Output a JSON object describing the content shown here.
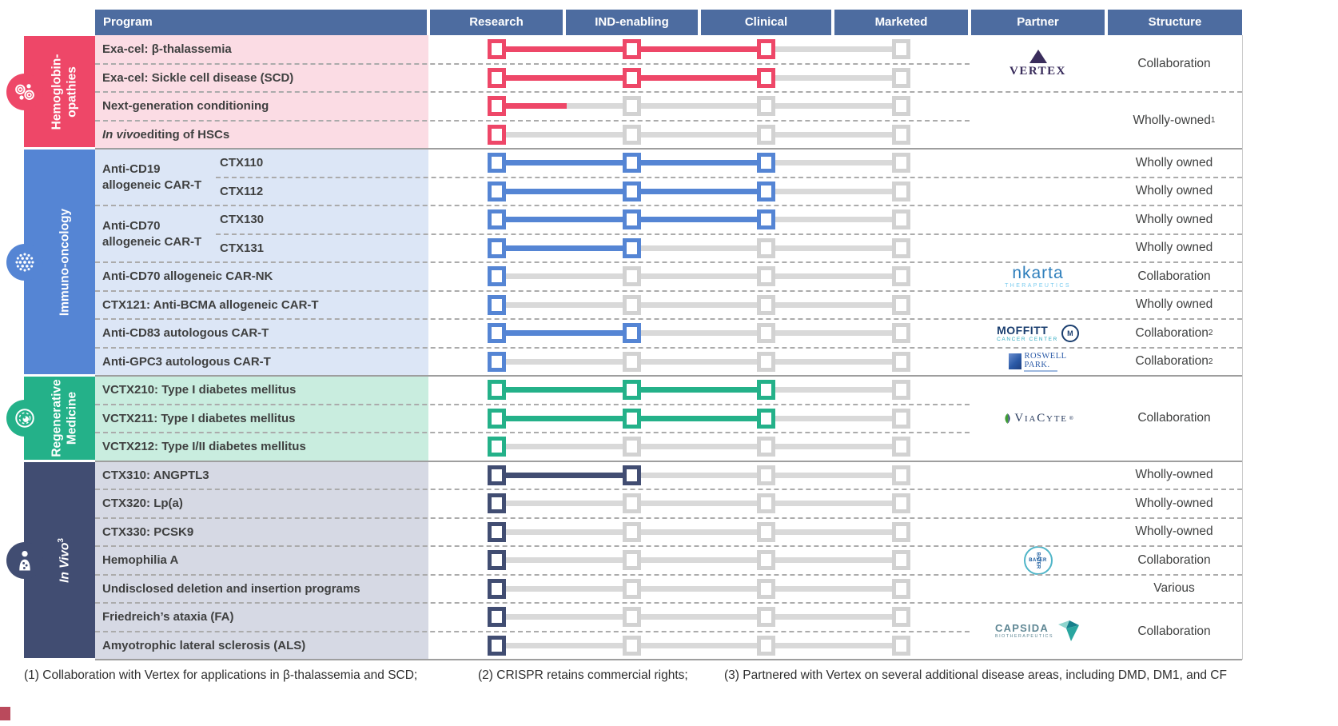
{
  "header": {
    "columns": [
      "Program",
      "Research",
      "IND-enabling",
      "Clinical",
      "Marketed",
      "Partner",
      "Structure"
    ]
  },
  "stages": [
    "Research",
    "IND-enabling",
    "Clinical",
    "Marketed"
  ],
  "colors": {
    "header_bg": "#4D6CA0",
    "pink": "#EE4768",
    "pink_row_bg": "#FBDCE4",
    "blue": "#5585D4",
    "blue_row_bg": "#DCE6F6",
    "green": "#24B189",
    "green_row_bg": "#C9EDDF",
    "navy": "#414D72",
    "navy_row_bg": "#D6D9E4",
    "inactive_track": "#D9D9D9",
    "inactive_square": "#D2D2D2",
    "dashed_line": "#ABABAB",
    "section_divider": "#9E9E9E",
    "body_text": "#3F4040"
  },
  "sections": [
    {
      "id": "hemoglobinopathies",
      "label_lines": "Hemoglobin-\nopathies",
      "label_italic": false,
      "label_sup": "",
      "icon": "blood-cells-icon",
      "accent": "pink",
      "rows": [
        {
          "label": "Exa-cel: β-thalassemia",
          "squares": [
            1,
            1,
            1,
            0
          ],
          "segments": [
            1,
            1,
            0
          ]
        },
        {
          "label": "Exa-cel: Sickle cell disease (SCD)",
          "squares": [
            1,
            1,
            1,
            0
          ],
          "segments": [
            1,
            1,
            0
          ]
        },
        {
          "label": "Next-generation conditioning",
          "squares": [
            1,
            0,
            0,
            0
          ],
          "segments": [
            0.52,
            0,
            0
          ]
        },
        {
          "italic_lead": "In vivo",
          "label": " editing of HSCs",
          "squares": [
            1,
            0,
            0,
            0
          ],
          "segments": [
            0,
            0,
            0
          ]
        }
      ],
      "groups": [],
      "separators": [
        {
          "after": 0,
          "extent": "toPartner"
        },
        {
          "after": 1,
          "extent": "full"
        },
        {
          "after": 2,
          "extent": "toPartner"
        }
      ],
      "partners": [
        {
          "start": 0,
          "span": 2,
          "logo": "vertex"
        }
      ],
      "structures": [
        {
          "start": 0,
          "span": 2,
          "text": "Collaboration",
          "sup": ""
        },
        {
          "start": 2,
          "span": 2,
          "text": "Wholly-owned",
          "sup": "1"
        }
      ]
    },
    {
      "id": "immuno-oncology",
      "label_lines": "Immuno-oncology",
      "label_italic": false,
      "label_sup": "",
      "icon": "cell-cluster-icon",
      "accent": "blue",
      "rows": [
        {
          "label": "CTX110",
          "sub": true,
          "squares": [
            1,
            1,
            1,
            0
          ],
          "segments": [
            1,
            1,
            0
          ]
        },
        {
          "label": "CTX112",
          "sub": true,
          "squares": [
            1,
            1,
            1,
            0
          ],
          "segments": [
            1,
            1,
            0
          ]
        },
        {
          "label": "CTX130",
          "sub": true,
          "squares": [
            1,
            1,
            1,
            0
          ],
          "segments": [
            1,
            1,
            0
          ]
        },
        {
          "label": "CTX131",
          "sub": true,
          "squares": [
            1,
            1,
            0,
            0
          ],
          "segments": [
            1,
            0,
            0
          ]
        },
        {
          "label": "Anti-CD70 allogeneic CAR-NK",
          "squares": [
            1,
            0,
            0,
            0
          ],
          "segments": [
            0,
            0,
            0
          ]
        },
        {
          "label": "CTX121: Anti-BCMA allogeneic CAR-T",
          "squares": [
            1,
            0,
            0,
            0
          ],
          "segments": [
            0,
            0,
            0
          ]
        },
        {
          "label": "Anti-CD83 autologous CAR-T",
          "squares": [
            1,
            1,
            0,
            0
          ],
          "segments": [
            1,
            0,
            0
          ]
        },
        {
          "label": "Anti-GPC3 autologous CAR-T",
          "squares": [
            1,
            0,
            0,
            0
          ],
          "segments": [
            0,
            0,
            0
          ]
        }
      ],
      "groups": [
        {
          "start": 0,
          "span": 2,
          "label": "Anti-CD19\nallogeneic CAR-T"
        },
        {
          "start": 2,
          "span": 2,
          "label": "Anti-CD70\nallogeneic CAR-T"
        }
      ],
      "separators": [
        {
          "after": 0,
          "extent": "fromSub"
        },
        {
          "after": 1,
          "extent": "full"
        },
        {
          "after": 2,
          "extent": "fromSub"
        },
        {
          "after": 3,
          "extent": "full"
        },
        {
          "after": 4,
          "extent": "full"
        },
        {
          "after": 5,
          "extent": "full"
        },
        {
          "after": 6,
          "extent": "full"
        }
      ],
      "partners": [
        {
          "start": 4,
          "span": 1,
          "logo": "nkarta"
        },
        {
          "start": 6,
          "span": 1,
          "logo": "moffitt"
        },
        {
          "start": 7,
          "span": 1,
          "logo": "roswell"
        }
      ],
      "structures": [
        {
          "start": 0,
          "span": 1,
          "text": "Wholly owned",
          "sup": ""
        },
        {
          "start": 1,
          "span": 1,
          "text": "Wholly owned",
          "sup": ""
        },
        {
          "start": 2,
          "span": 1,
          "text": "Wholly owned",
          "sup": ""
        },
        {
          "start": 3,
          "span": 1,
          "text": "Wholly owned",
          "sup": ""
        },
        {
          "start": 4,
          "span": 1,
          "text": "Collaboration",
          "sup": ""
        },
        {
          "start": 5,
          "span": 1,
          "text": "Wholly owned",
          "sup": ""
        },
        {
          "start": 6,
          "span": 1,
          "text": "Collaboration",
          "sup": "2"
        },
        {
          "start": 7,
          "span": 1,
          "text": "Collaboration",
          "sup": "2"
        }
      ]
    },
    {
      "id": "regenerative-medicine",
      "label_lines": "Regenerative\nMedicine",
      "label_italic": false,
      "label_sup": "",
      "icon": "regenerating-cell-icon",
      "accent": "green",
      "rows": [
        {
          "label": "VCTX210: Type I diabetes mellitus",
          "squares": [
            1,
            1,
            1,
            0
          ],
          "segments": [
            1,
            1,
            0
          ]
        },
        {
          "label": "VCTX211: Type I diabetes mellitus",
          "squares": [
            1,
            1,
            1,
            0
          ],
          "segments": [
            1,
            1,
            0
          ]
        },
        {
          "label": "VCTX212: Type I/II diabetes mellitus",
          "squares": [
            1,
            0,
            0,
            0
          ],
          "segments": [
            0,
            0,
            0
          ]
        }
      ],
      "groups": [],
      "separators": [
        {
          "after": 0,
          "extent": "toPartner"
        },
        {
          "after": 1,
          "extent": "toPartner"
        }
      ],
      "partners": [
        {
          "start": 0,
          "span": 3,
          "logo": "viacyte"
        }
      ],
      "structures": [
        {
          "start": 0,
          "span": 3,
          "text": "Collaboration",
          "sup": ""
        }
      ]
    },
    {
      "id": "in-vivo",
      "label_lines": "In Vivo",
      "label_italic": true,
      "label_sup": "3",
      "icon": "human-body-icon",
      "accent": "navy",
      "rows": [
        {
          "label": "CTX310: ANGPTL3",
          "squares": [
            1,
            1,
            0,
            0
          ],
          "segments": [
            1,
            0,
            0
          ]
        },
        {
          "label": "CTX320: Lp(a)",
          "squares": [
            1,
            0,
            0,
            0
          ],
          "segments": [
            0,
            0,
            0
          ]
        },
        {
          "label": "CTX330: PCSK9",
          "squares": [
            1,
            0,
            0,
            0
          ],
          "segments": [
            0,
            0,
            0
          ]
        },
        {
          "label": "Hemophilia A",
          "squares": [
            1,
            0,
            0,
            0
          ],
          "segments": [
            0,
            0,
            0
          ]
        },
        {
          "label": "Undisclosed deletion and insertion programs",
          "squares": [
            1,
            0,
            0,
            0
          ],
          "segments": [
            0,
            0,
            0
          ]
        },
        {
          "label": "Friedreich’s ataxia (FA)",
          "squares": [
            1,
            0,
            0,
            0
          ],
          "segments": [
            0,
            0,
            0
          ]
        },
        {
          "label": "Amyotrophic lateral sclerosis (ALS)",
          "squares": [
            1,
            0,
            0,
            0
          ],
          "segments": [
            0,
            0,
            0
          ]
        }
      ],
      "groups": [],
      "separators": [
        {
          "after": 0,
          "extent": "full"
        },
        {
          "after": 1,
          "extent": "full"
        },
        {
          "after": 2,
          "extent": "full"
        },
        {
          "after": 3,
          "extent": "full"
        },
        {
          "after": 4,
          "extent": "full"
        },
        {
          "after": 5,
          "extent": "toPartner"
        }
      ],
      "partners": [
        {
          "start": 3,
          "span": 1,
          "logo": "bayer"
        },
        {
          "start": 5,
          "span": 2,
          "logo": "capsida"
        }
      ],
      "structures": [
        {
          "start": 0,
          "span": 1,
          "text": "Wholly-owned",
          "sup": ""
        },
        {
          "start": 1,
          "span": 1,
          "text": "Wholly-owned",
          "sup": ""
        },
        {
          "start": 2,
          "span": 1,
          "text": "Wholly-owned",
          "sup": ""
        },
        {
          "start": 3,
          "span": 1,
          "text": "Collaboration",
          "sup": ""
        },
        {
          "start": 4,
          "span": 1,
          "text": "Various",
          "sup": ""
        },
        {
          "start": 5,
          "span": 2,
          "text": "Collaboration",
          "sup": ""
        }
      ]
    }
  ],
  "logos": {
    "vertex": {
      "text": "VERTEX"
    },
    "nkarta": {
      "text": "nkarta",
      "subtext": "THERAPEUTICS"
    },
    "moffitt": {
      "text": "MOFFITT",
      "subtext": "CANCER CENTER",
      "monogram": "M"
    },
    "roswell": {
      "line1": "ROSWELL",
      "line2": "PARK."
    },
    "viacyte": {
      "text": "ViaCyte",
      "sup": "®"
    },
    "bayer": {
      "text": "BAYER"
    },
    "capsida": {
      "text": "CAPSIDA",
      "subtext": "BIOTHERAPEUTICS"
    }
  },
  "footnotes": [
    "(1) Collaboration with Vertex for applications in β-thalassemia and SCD;",
    "(2) CRISPR retains commercial rights;",
    "(3) Partnered with Vertex on several additional disease areas, including DMD, DM1, and CF"
  ]
}
